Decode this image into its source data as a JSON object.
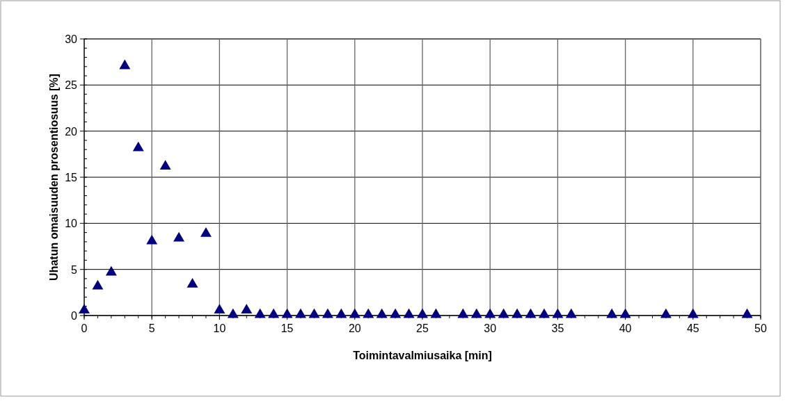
{
  "chart_data": {
    "type": "scatter",
    "xlabel": "Toimintavalmiusaika [min]",
    "ylabel": "Uhatun omaisuuden prosentiosuus [%]",
    "x": [
      0,
      1,
      2,
      3,
      4,
      5,
      6,
      7,
      8,
      9,
      10,
      11,
      12,
      13,
      14,
      15,
      16,
      17,
      18,
      19,
      20,
      21,
      22,
      23,
      24,
      25,
      26,
      28,
      29,
      30,
      31,
      32,
      33,
      34,
      35,
      36,
      39,
      40,
      43,
      45,
      49
    ],
    "series": [
      {
        "color": "#000080",
        "values": [
          0.5,
          3.1,
          4.6,
          27,
          18.1,
          8,
          16.1,
          8.3,
          3.3,
          8.8,
          0.5,
          0,
          0.5,
          0,
          0,
          0,
          0,
          0,
          0,
          0,
          0,
          0,
          0,
          0,
          0,
          0,
          0,
          0,
          0,
          0,
          0,
          0,
          0,
          0,
          0,
          0,
          0,
          0,
          0,
          0,
          0
        ]
      }
    ],
    "xlim": [
      0,
      50
    ],
    "xticks": [
      0,
      5,
      10,
      15,
      20,
      25,
      30,
      35,
      40,
      45,
      50
    ],
    "ylim": [
      0,
      30
    ],
    "yticks": [
      0,
      5,
      10,
      15,
      20,
      25,
      30
    ],
    "grid": true,
    "marker": "triangle"
  }
}
